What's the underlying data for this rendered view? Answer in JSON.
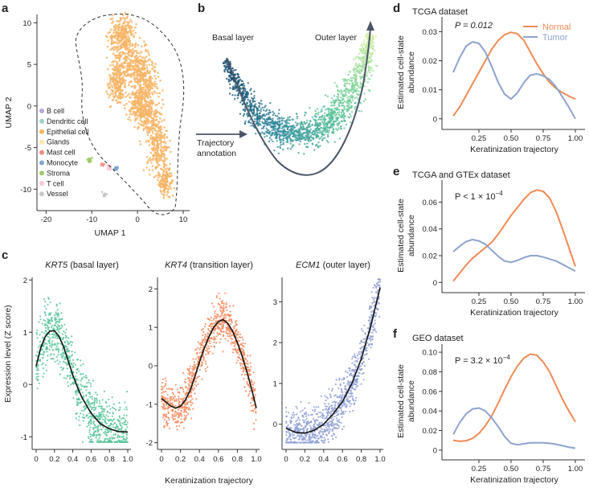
{
  "panel_labels": {
    "a": "a",
    "b": "b",
    "c": "c",
    "d": "d",
    "e": "e",
    "f": "f"
  },
  "colors": {
    "normal": "#ee8a55",
    "tumor": "#8ea3cc",
    "epithelial": "#f8b566",
    "krt5": "#5cc69b",
    "krt4": "#f38b5e",
    "ecm1": "#8e9fd3",
    "trajectory_arrow": "#4a5568",
    "fit_line": "#111111"
  },
  "chart_data": [
    {
      "id": "a",
      "type": "scatter",
      "title": "",
      "xlabel": "UMAP 1",
      "ylabel": "UMAP 2",
      "xlim": [
        -22,
        10
      ],
      "ylim": [
        -12,
        11
      ],
      "xticks": [
        "-20",
        "-10",
        "0",
        "10"
      ],
      "yticks": [
        "-10",
        "-5",
        "0",
        "5",
        "10"
      ],
      "legend_position": "left",
      "legend": [
        {
          "label": "B cell",
          "color": "#b7a6d8"
        },
        {
          "label": "Dendritic cell",
          "color": "#9fd3c7"
        },
        {
          "label": "Epithelial cell",
          "color": "#f8b566"
        },
        {
          "label": "Glands",
          "color": "#fde6a6"
        },
        {
          "label": "Mast cell",
          "color": "#f08e80"
        },
        {
          "label": "Monocyte",
          "color": "#7fa7cf"
        },
        {
          "label": "Stroma",
          "color": "#9ccc65"
        },
        {
          "label": "T cell",
          "color": "#f7c6d9"
        },
        {
          "label": "Vessel",
          "color": "#c8c8c8"
        }
      ]
    },
    {
      "id": "b",
      "type": "scatter",
      "title": "",
      "labels": {
        "start": "Basal layer",
        "end": "Outer layer",
        "arrow_line1": "Trajectory",
        "arrow_line2": "annotation"
      }
    },
    {
      "id": "c",
      "type": "scatter",
      "xlabel": "Keratinization trajectory",
      "ylabel": "Expression level (Z score)",
      "xticks": [
        "0",
        "0.2",
        "0.4",
        "0.6",
        "0.8",
        "1.0"
      ],
      "panels": [
        {
          "gene": "KRT5",
          "subtitle": " (basal layer)",
          "ylim": [
            -1.15,
            2.05
          ],
          "yticks": [
            -1,
            0,
            1,
            2
          ],
          "fit": {
            "x": [
              0,
              0.05,
              0.1,
              0.15,
              0.2,
              0.25,
              0.3,
              0.35,
              0.4,
              0.45,
              0.5,
              0.6,
              0.7,
              0.8,
              0.9,
              1.0
            ],
            "y": [
              0.35,
              0.7,
              0.92,
              1.02,
              1.03,
              0.92,
              0.72,
              0.45,
              0.18,
              -0.05,
              -0.25,
              -0.55,
              -0.75,
              -0.85,
              -0.9,
              -0.91
            ]
          }
        },
        {
          "gene": "KRT4",
          "subtitle": " (transition layer)",
          "ylim": [
            -2.05,
            2.3
          ],
          "yticks": [
            -2,
            -1,
            0,
            1,
            2
          ],
          "fit": {
            "x": [
              0,
              0.05,
              0.1,
              0.15,
              0.2,
              0.25,
              0.3,
              0.35,
              0.4,
              0.45,
              0.5,
              0.55,
              0.6,
              0.65,
              0.7,
              0.75,
              0.8,
              0.85,
              0.9,
              0.95,
              1.0
            ],
            "y": [
              -0.85,
              -0.95,
              -1.05,
              -1.1,
              -1.05,
              -0.9,
              -0.65,
              -0.3,
              0.1,
              0.45,
              0.75,
              1.0,
              1.15,
              1.2,
              1.1,
              0.9,
              0.6,
              0.25,
              -0.15,
              -0.6,
              -1.1
            ]
          }
        },
        {
          "gene": "ECM1",
          "subtitle": " (outer layer)",
          "ylim": [
            -0.5,
            3.6
          ],
          "yticks": [
            0,
            1,
            2,
            3
          ],
          "fit": {
            "x": [
              0,
              0.1,
              0.2,
              0.3,
              0.4,
              0.5,
              0.6,
              0.7,
              0.8,
              0.9,
              1.0
            ],
            "y": [
              -0.1,
              -0.2,
              -0.22,
              -0.15,
              0.0,
              0.25,
              0.55,
              1.0,
              1.6,
              2.4,
              3.35
            ]
          }
        }
      ]
    },
    {
      "id": "d",
      "type": "line",
      "title": "TCGA dataset",
      "pvalue": "P = 0.012",
      "xlabel": "Keratinization trajectory",
      "ylabel_lines": [
        "Estimated cell-state",
        "abundance"
      ],
      "xlim": [
        0,
        1.05
      ],
      "ylim": [
        -0.002,
        0.034
      ],
      "xticks": [
        "0.25",
        "0.50",
        "0.75",
        "1.00"
      ],
      "xtick_values": [
        0.25,
        0.5,
        0.75,
        1.0
      ],
      "yticks": [
        "0",
        "0.01",
        "0.02",
        "0.03"
      ],
      "ytick_values": [
        0,
        0.01,
        0.02,
        0.03
      ],
      "legend_position": "top-right",
      "x": [
        0.05,
        0.1,
        0.15,
        0.2,
        0.25,
        0.3,
        0.35,
        0.4,
        0.45,
        0.5,
        0.55,
        0.6,
        0.65,
        0.7,
        0.75,
        0.8,
        0.85,
        0.9,
        0.95,
        1.0
      ],
      "series": [
        {
          "name": "Normal",
          "values": [
            0.001,
            0.004,
            0.008,
            0.012,
            0.016,
            0.02,
            0.024,
            0.027,
            0.029,
            0.0298,
            0.0293,
            0.027,
            0.023,
            0.019,
            0.0155,
            0.0125,
            0.0105,
            0.009,
            0.0078,
            0.0068
          ]
        },
        {
          "name": "Tumor",
          "values": [
            0.016,
            0.021,
            0.025,
            0.0265,
            0.026,
            0.023,
            0.018,
            0.0125,
            0.0085,
            0.0068,
            0.009,
            0.0125,
            0.015,
            0.0155,
            0.0148,
            0.0135,
            0.011,
            0.0075,
            0.004,
            0.0
          ]
        }
      ]
    },
    {
      "id": "e",
      "type": "line",
      "title": "TCGA and GTEx dataset",
      "pvalue_prefix": "P < 1 × 10",
      "pvalue_exp": "−4",
      "xlabel": "Keratinization trajectory",
      "ylabel_lines": [
        "Estimated cell-state",
        "abundance"
      ],
      "xlim": [
        0,
        1.05
      ],
      "ylim": [
        -0.004,
        0.074
      ],
      "xticks": [
        "0.25",
        "0.50",
        "0.75",
        "1.00"
      ],
      "xtick_values": [
        0.25,
        0.5,
        0.75,
        1.0
      ],
      "yticks": [
        "0",
        "0.02",
        "0.04",
        "0.06"
      ],
      "ytick_values": [
        0,
        0.02,
        0.04,
        0.06
      ],
      "x": [
        0.05,
        0.1,
        0.15,
        0.2,
        0.25,
        0.3,
        0.35,
        0.4,
        0.45,
        0.5,
        0.55,
        0.6,
        0.65,
        0.7,
        0.75,
        0.8,
        0.85,
        0.9,
        0.95,
        1.0
      ],
      "series": [
        {
          "name": "Normal",
          "values": [
            0.001,
            0.007,
            0.013,
            0.018,
            0.022,
            0.026,
            0.03,
            0.036,
            0.043,
            0.05,
            0.056,
            0.062,
            0.067,
            0.069,
            0.068,
            0.063,
            0.053,
            0.04,
            0.026,
            0.012
          ]
        },
        {
          "name": "Tumor",
          "values": [
            0.023,
            0.027,
            0.0305,
            0.032,
            0.031,
            0.0285,
            0.024,
            0.0195,
            0.016,
            0.015,
            0.0165,
            0.0185,
            0.02,
            0.02,
            0.019,
            0.0175,
            0.016,
            0.0135,
            0.011,
            0.0085
          ]
        }
      ]
    },
    {
      "id": "f",
      "type": "line",
      "title": "GEO dataset",
      "pvalue_prefix": "P = 3.2 × 10",
      "pvalue_exp": "−4",
      "xlabel": "Keratinization trajectory",
      "ylabel_lines": [
        "Estimated cell-state",
        "abundance"
      ],
      "xlim": [
        0,
        1.05
      ],
      "ylim": [
        -0.005,
        0.105
      ],
      "xticks": [
        "0.25",
        "0.50",
        "0.75",
        "1.00"
      ],
      "xtick_values": [
        0.25,
        0.5,
        0.75,
        1.0
      ],
      "yticks": [
        "0",
        "0.02",
        "0.04",
        "0.06",
        "0.08",
        "0.10"
      ],
      "ytick_values": [
        0,
        0.02,
        0.04,
        0.06,
        0.08,
        0.1
      ],
      "x": [
        0.05,
        0.1,
        0.15,
        0.2,
        0.25,
        0.3,
        0.35,
        0.4,
        0.45,
        0.5,
        0.55,
        0.6,
        0.65,
        0.7,
        0.75,
        0.8,
        0.85,
        0.9,
        0.95,
        1.0
      ],
      "series": [
        {
          "name": "Normal",
          "values": [
            0.01,
            0.009,
            0.0095,
            0.012,
            0.017,
            0.025,
            0.035,
            0.048,
            0.062,
            0.075,
            0.086,
            0.094,
            0.098,
            0.097,
            0.09,
            0.08,
            0.066,
            0.052,
            0.04,
            0.029
          ]
        },
        {
          "name": "Tumor",
          "values": [
            0.016,
            0.028,
            0.037,
            0.042,
            0.043,
            0.04,
            0.033,
            0.024,
            0.014,
            0.007,
            0.0055,
            0.0065,
            0.0075,
            0.0075,
            0.0075,
            0.007,
            0.006,
            0.0045,
            0.003,
            0.002
          ]
        }
      ]
    }
  ]
}
